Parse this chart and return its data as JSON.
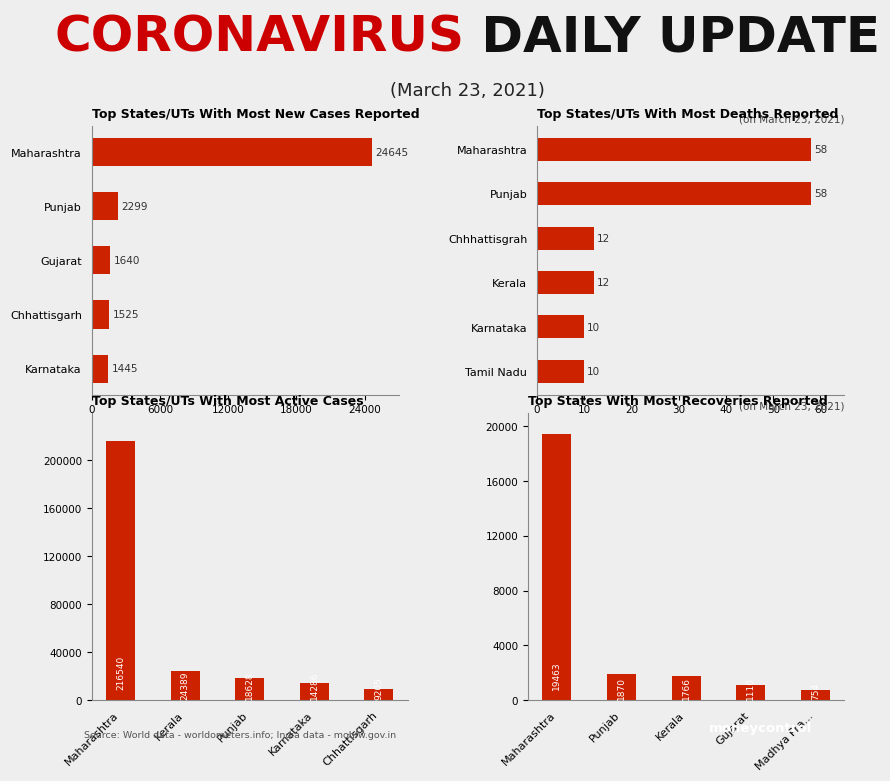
{
  "title_coronavirus": "CORONAVIRUS",
  "title_daily_update": " DAILY UPDATE",
  "subtitle": "(March 23, 2021)",
  "bg_color": "#eeeeee",
  "bar_color": "#cc2200",
  "new_cases": {
    "title": "Top States/UTs With Most New Cases Reported",
    "states": [
      "Maharashtra",
      "Punjab",
      "Gujarat",
      "Chhattisgarh",
      "Karnataka"
    ],
    "values": [
      24645,
      2299,
      1640,
      1525,
      1445
    ],
    "xlim": [
      0,
      27000
    ],
    "xticks": [
      0,
      6000,
      12000,
      18000,
      24000
    ]
  },
  "deaths": {
    "title": "Top States/UTs With Most Deaths Reported",
    "subtitle": "(on March 23, 2021)",
    "states": [
      "Maharashtra",
      "Punjab",
      "Chhhattisgrah",
      "Kerala",
      "Karnataka",
      "Tamil Nadu"
    ],
    "values": [
      58,
      58,
      12,
      12,
      10,
      10
    ],
    "xlim": [
      0,
      65
    ],
    "xticks": [
      0,
      10,
      20,
      30,
      40,
      50,
      60
    ]
  },
  "active_cases": {
    "title": "Top States/UTs With Most Active Cases",
    "states": [
      "Maharashtra",
      "Kerala",
      "Punjab",
      "Karnataka",
      "Chhattisgarh"
    ],
    "values": [
      216540,
      24389,
      18628,
      14286,
      9205
    ],
    "ylim": [
      0,
      240000
    ],
    "yticks": [
      0,
      40000,
      80000,
      120000,
      160000,
      200000
    ]
  },
  "recoveries": {
    "title": "Top States With Most Recoveries Reported",
    "subtitle": "(on March 23, 2021)",
    "states": [
      "Maharashtra",
      "Punjab",
      "Kerala",
      "Gujarat",
      "Madhya Pra..."
    ],
    "values": [
      19463,
      1870,
      1766,
      1110,
      754
    ],
    "ylim": [
      0,
      21000
    ],
    "yticks": [
      0,
      4000,
      8000,
      12000,
      16000,
      20000
    ]
  },
  "source_text": "Source: World data - worldometers.info; India data - mohfw.gov.in",
  "moneycontrol_text": "moneycontrol"
}
